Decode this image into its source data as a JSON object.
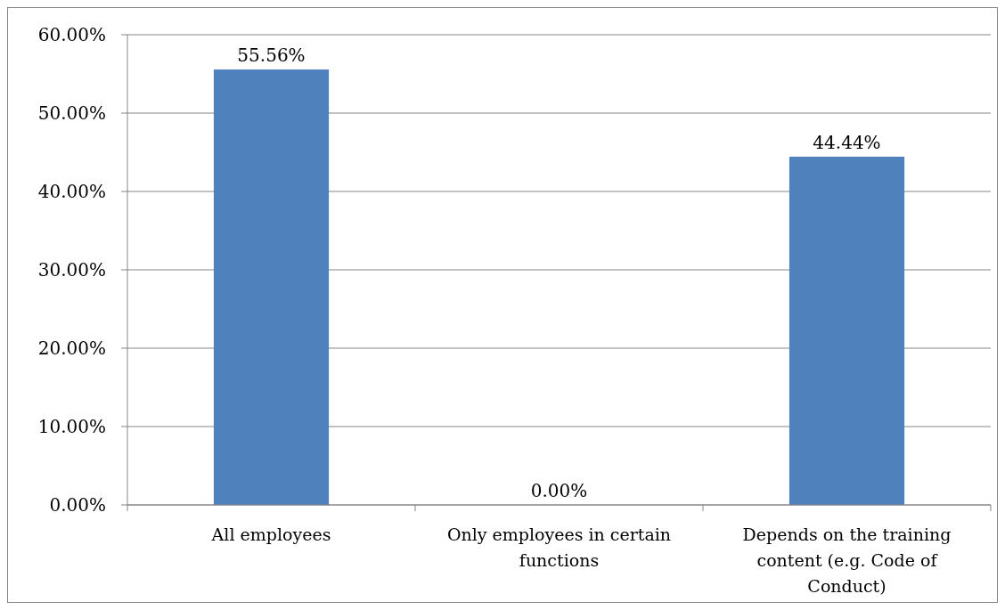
{
  "chart_data": {
    "type": "bar",
    "categories": [
      "All employees",
      "Only employees in certain functions",
      "Depends on the training content (e.g. Code of Conduct)"
    ],
    "values": [
      55.56,
      0,
      44.44
    ],
    "value_labels": [
      "55.56%",
      "0.00%",
      "44.44%"
    ],
    "color": "#4f81bd",
    "ylim": [
      0,
      60
    ],
    "yticks": [
      {
        "value": 0,
        "label": "0.00%"
      },
      {
        "value": 10,
        "label": "10.00%"
      },
      {
        "value": 20,
        "label": "20.00%"
      },
      {
        "value": 30,
        "label": "30.00%"
      },
      {
        "value": 40,
        "label": "40.00%"
      },
      {
        "value": 50,
        "label": "50.00%"
      },
      {
        "value": 60,
        "label": "60.00%"
      }
    ],
    "grid": "y"
  }
}
